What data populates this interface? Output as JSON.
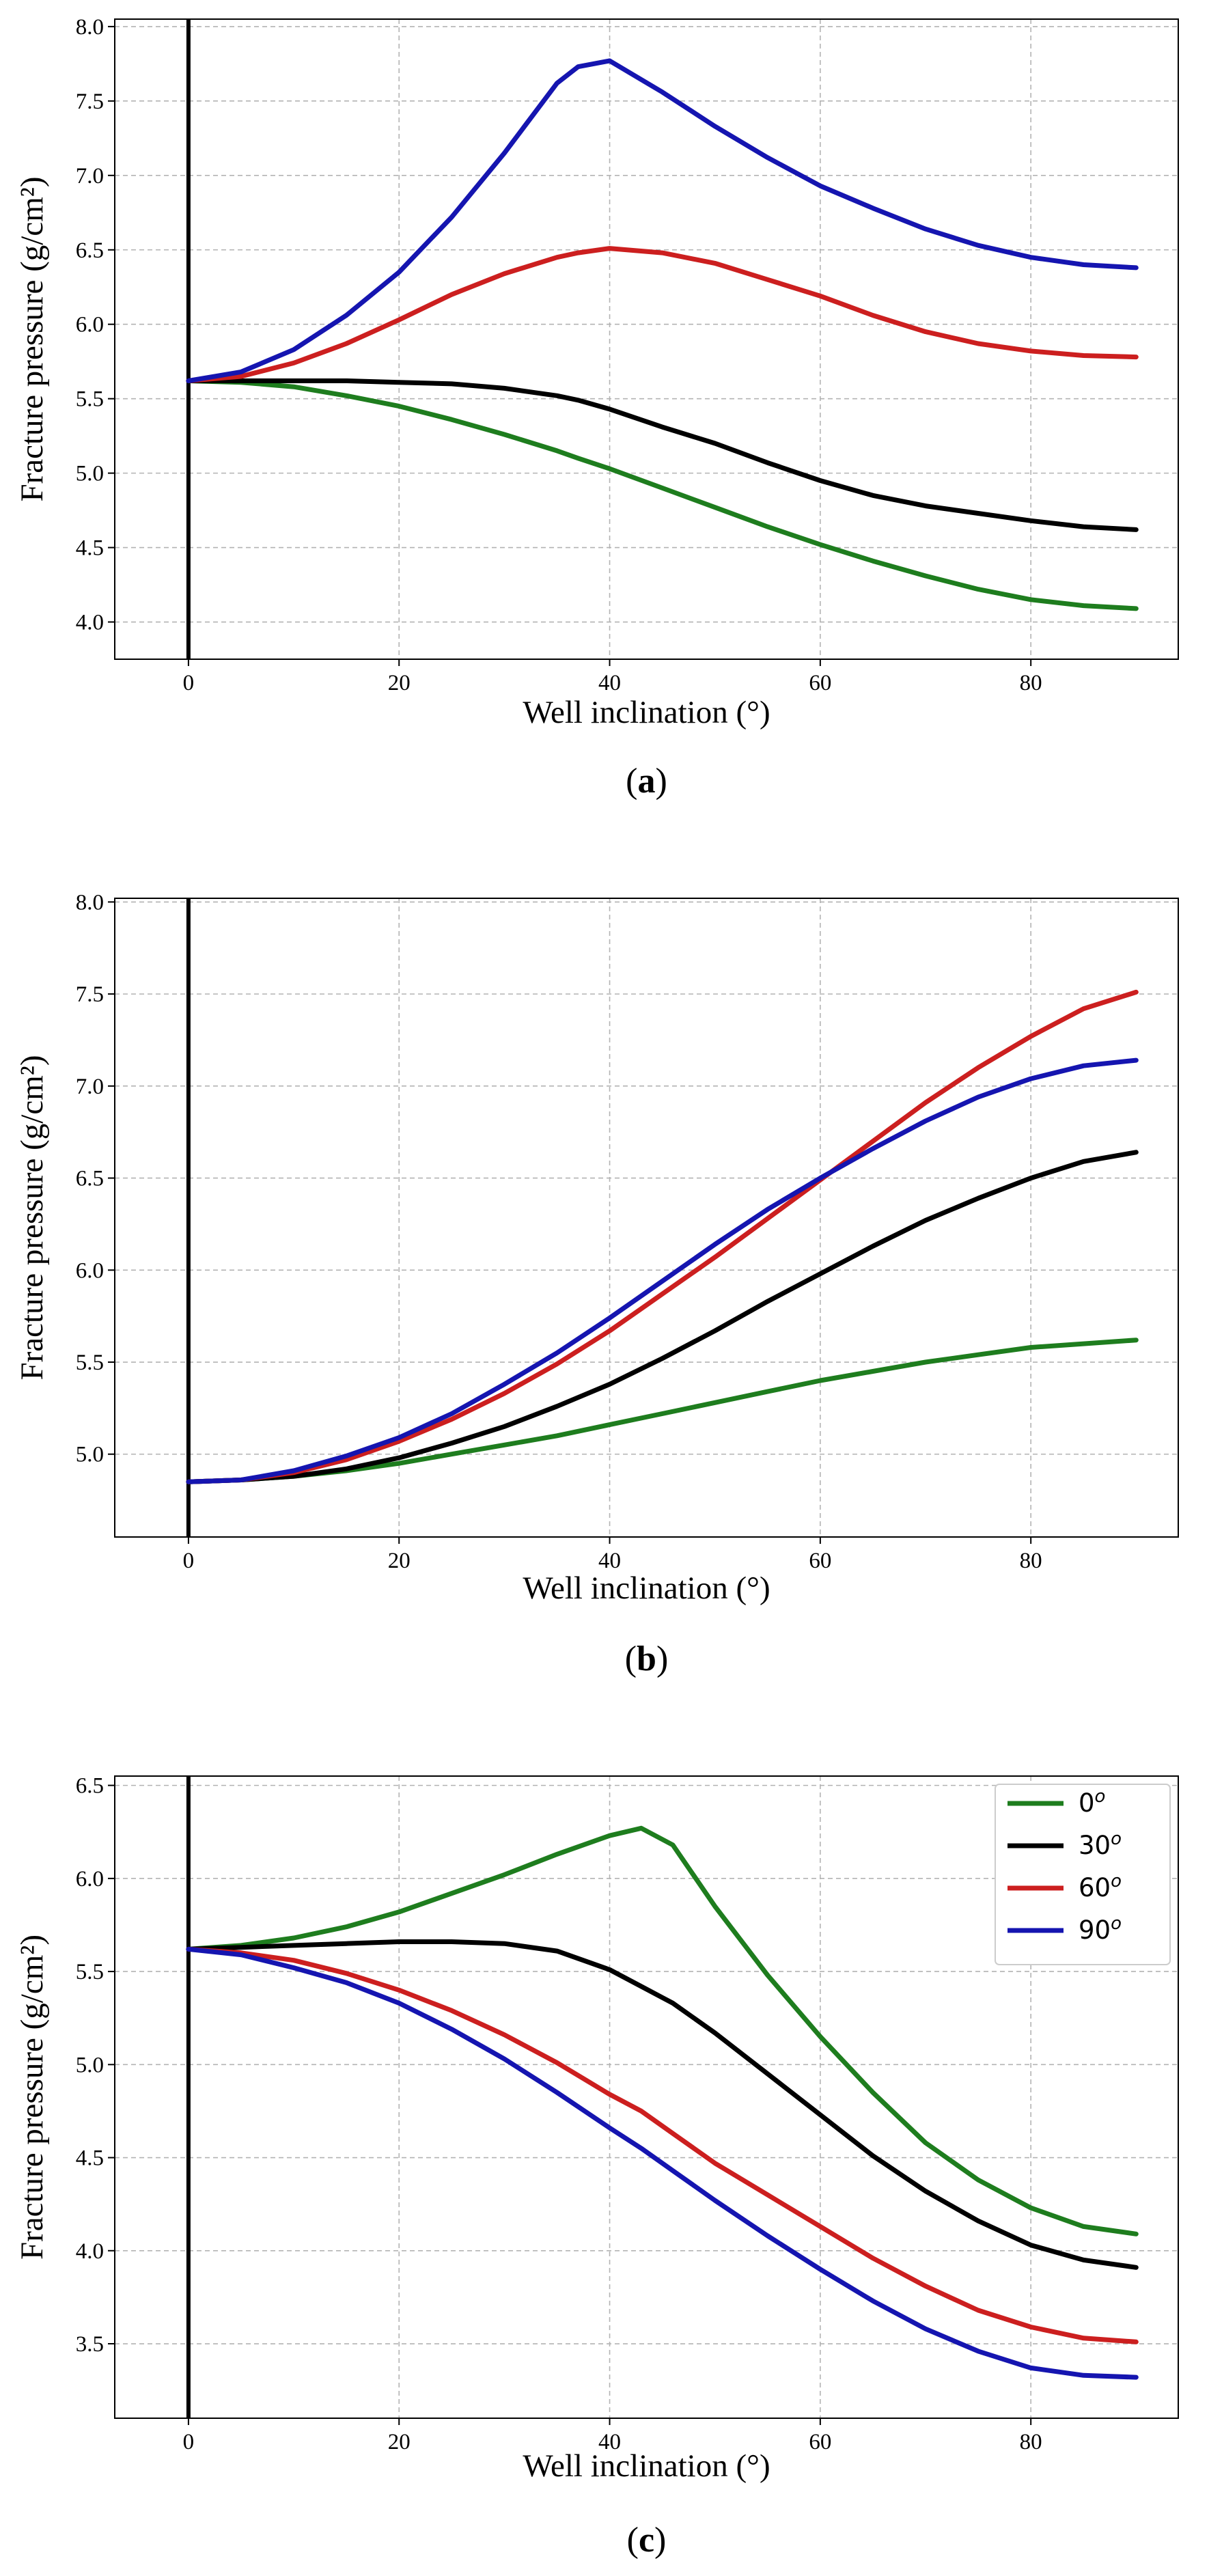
{
  "chart_data": [
    {
      "id": "a",
      "type": "line",
      "caption_open": "(",
      "caption_letter": "a",
      "caption_close": ")",
      "xlabel": "Well inclination (°)",
      "ylabel": "Fracture pressure (g/cm²)",
      "xlim": [
        -7,
        94
      ],
      "ylim": [
        3.75,
        8.05
      ],
      "xticks": [
        0,
        20,
        40,
        60,
        80
      ],
      "yticks": [
        4.0,
        4.5,
        5.0,
        5.5,
        6.0,
        6.5,
        7.0,
        7.5,
        8.0
      ],
      "x": [
        0,
        5,
        10,
        15,
        20,
        25,
        30,
        35,
        37,
        40,
        45,
        50,
        55,
        60,
        65,
        70,
        75,
        80,
        85,
        90
      ],
      "series": [
        {
          "name": "0°",
          "color": "#1e7d1e",
          "values": [
            5.62,
            5.61,
            5.58,
            5.52,
            5.45,
            5.36,
            5.26,
            5.15,
            5.1,
            5.03,
            4.9,
            4.77,
            4.64,
            4.52,
            4.41,
            4.31,
            4.22,
            4.15,
            4.11,
            4.09
          ]
        },
        {
          "name": "30°",
          "color": "#000000",
          "values": [
            5.62,
            5.62,
            5.62,
            5.62,
            5.61,
            5.6,
            5.57,
            5.52,
            5.49,
            5.43,
            5.31,
            5.2,
            5.07,
            4.95,
            4.85,
            4.78,
            4.73,
            4.68,
            4.64,
            4.62
          ]
        },
        {
          "name": "60°",
          "color": "#cc1f1f",
          "values": [
            5.62,
            5.65,
            5.74,
            5.87,
            6.03,
            6.2,
            6.34,
            6.45,
            6.48,
            6.51,
            6.48,
            6.41,
            6.3,
            6.19,
            6.06,
            5.95,
            5.87,
            5.82,
            5.79,
            5.78
          ]
        },
        {
          "name": "90°",
          "color": "#1515b0",
          "values": [
            5.62,
            5.68,
            5.83,
            6.06,
            6.35,
            6.72,
            7.15,
            7.62,
            7.73,
            7.77,
            7.56,
            7.33,
            7.12,
            6.93,
            6.78,
            6.64,
            6.53,
            6.45,
            6.4,
            6.38
          ]
        }
      ]
    },
    {
      "id": "b",
      "type": "line",
      "caption_open": "(",
      "caption_letter": "b",
      "caption_close": ")",
      "xlabel": "Well inclination (°)",
      "ylabel": "Fracture pressure (g/cm²)",
      "xlim": [
        -7,
        94
      ],
      "ylim": [
        4.55,
        8.02
      ],
      "xticks": [
        0,
        20,
        40,
        60,
        80
      ],
      "yticks": [
        5.0,
        5.5,
        6.0,
        6.5,
        7.0,
        7.5,
        8.0
      ],
      "x": [
        0,
        5,
        10,
        15,
        20,
        25,
        30,
        35,
        40,
        45,
        50,
        55,
        60,
        65,
        70,
        75,
        80,
        85,
        90
      ],
      "series": [
        {
          "name": "0°",
          "color": "#1e7d1e",
          "values": [
            4.85,
            4.86,
            4.88,
            4.91,
            4.95,
            5.0,
            5.05,
            5.1,
            5.16,
            5.22,
            5.28,
            5.34,
            5.4,
            5.45,
            5.5,
            5.54,
            5.58,
            5.6,
            5.62
          ]
        },
        {
          "name": "30°",
          "color": "#000000",
          "values": [
            4.85,
            4.86,
            4.88,
            4.92,
            4.98,
            5.06,
            5.15,
            5.26,
            5.38,
            5.52,
            5.67,
            5.83,
            5.98,
            6.13,
            6.27,
            6.39,
            6.5,
            6.59,
            6.64
          ]
        },
        {
          "name": "60°",
          "color": "#cc1f1f",
          "values": [
            4.85,
            4.86,
            4.9,
            4.97,
            5.07,
            5.19,
            5.33,
            5.49,
            5.67,
            5.87,
            6.07,
            6.28,
            6.49,
            6.7,
            6.91,
            7.1,
            7.27,
            7.42,
            7.51
          ]
        },
        {
          "name": "90°",
          "color": "#1515b0",
          "values": [
            4.85,
            4.86,
            4.91,
            4.99,
            5.09,
            5.22,
            5.38,
            5.55,
            5.74,
            5.94,
            6.14,
            6.33,
            6.5,
            6.66,
            6.81,
            6.94,
            7.04,
            7.11,
            7.14
          ]
        }
      ]
    },
    {
      "id": "c",
      "type": "line",
      "caption_open": "(",
      "caption_letter": "c",
      "caption_close": ")",
      "xlabel": "Well inclination (°)",
      "ylabel": "Fracture pressure (g/cm²)",
      "xlim": [
        -7,
        94
      ],
      "ylim": [
        3.1,
        6.55
      ],
      "xticks": [
        0,
        20,
        40,
        60,
        80
      ],
      "yticks": [
        3.5,
        4.0,
        4.5,
        5.0,
        5.5,
        6.0,
        6.5
      ],
      "legend": "top-right",
      "x": [
        0,
        5,
        10,
        15,
        20,
        25,
        30,
        35,
        40,
        43,
        46,
        50,
        55,
        60,
        65,
        70,
        75,
        80,
        85,
        90
      ],
      "series": [
        {
          "name": "0°",
          "legend_base": "0",
          "legend_sup": "o",
          "color": "#1e7d1e",
          "values": [
            5.62,
            5.64,
            5.68,
            5.74,
            5.82,
            5.92,
            6.02,
            6.13,
            6.23,
            6.27,
            6.18,
            5.85,
            5.48,
            5.15,
            4.85,
            4.58,
            4.38,
            4.23,
            4.13,
            4.09
          ]
        },
        {
          "name": "30°",
          "legend_base": "30",
          "legend_sup": "o",
          "color": "#000000",
          "values": [
            5.62,
            5.63,
            5.64,
            5.65,
            5.66,
            5.66,
            5.65,
            5.61,
            5.51,
            5.42,
            5.33,
            5.17,
            4.95,
            4.73,
            4.51,
            4.32,
            4.16,
            4.03,
            3.95,
            3.91
          ]
        },
        {
          "name": "60°",
          "legend_base": "60",
          "legend_sup": "o",
          "color": "#cc1f1f",
          "values": [
            5.62,
            5.6,
            5.56,
            5.49,
            5.4,
            5.29,
            5.16,
            5.01,
            4.84,
            4.75,
            4.63,
            4.47,
            4.3,
            4.13,
            3.96,
            3.81,
            3.68,
            3.59,
            3.53,
            3.51
          ]
        },
        {
          "name": "90°",
          "legend_base": "90",
          "legend_sup": "o",
          "color": "#1515b0",
          "values": [
            5.62,
            5.59,
            5.52,
            5.44,
            5.33,
            5.19,
            5.03,
            4.85,
            4.66,
            4.55,
            4.43,
            4.27,
            4.08,
            3.9,
            3.73,
            3.58,
            3.46,
            3.37,
            3.33,
            3.32
          ]
        }
      ]
    }
  ]
}
